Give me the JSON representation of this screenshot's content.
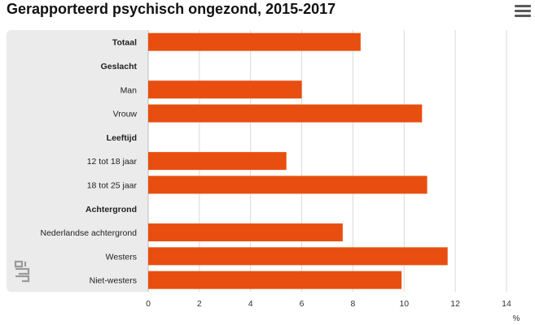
{
  "chart_data": {
    "type": "bar",
    "orientation": "horizontal",
    "title": "Gerapporteerd psychisch ongezond, 2015-2017",
    "categories": [
      {
        "label": "Totaal",
        "header": true
      },
      {
        "label": "Geslacht",
        "header": true
      },
      {
        "label": "Man",
        "header": false
      },
      {
        "label": "Vrouw",
        "header": false
      },
      {
        "label": "Leeftijd",
        "header": true
      },
      {
        "label": "12 tot 18 jaar",
        "header": false
      },
      {
        "label": "18 tot 25 jaar",
        "header": false
      },
      {
        "label": "Achtergrond",
        "header": true
      },
      {
        "label": "Nederlandse achtergrond",
        "header": false
      },
      {
        "label": "Westers",
        "header": false
      },
      {
        "label": "Niet-westers",
        "header": false
      }
    ],
    "values": [
      8.3,
      null,
      6.0,
      10.7,
      null,
      5.4,
      10.9,
      null,
      7.6,
      11.7,
      9.9
    ],
    "xlim": [
      0,
      14
    ],
    "ticks": [
      "0",
      "2",
      "4",
      "6",
      "8",
      "10",
      "12",
      "14"
    ],
    "xlabel": "%",
    "grid": true,
    "bar_color": "#e84e0f",
    "grid_color": "#d9d9d9",
    "label_panel_color": "#ebebeb"
  },
  "icons": {
    "menu": "hamburger-menu-icon",
    "logo": "cbs-logo-icon"
  }
}
